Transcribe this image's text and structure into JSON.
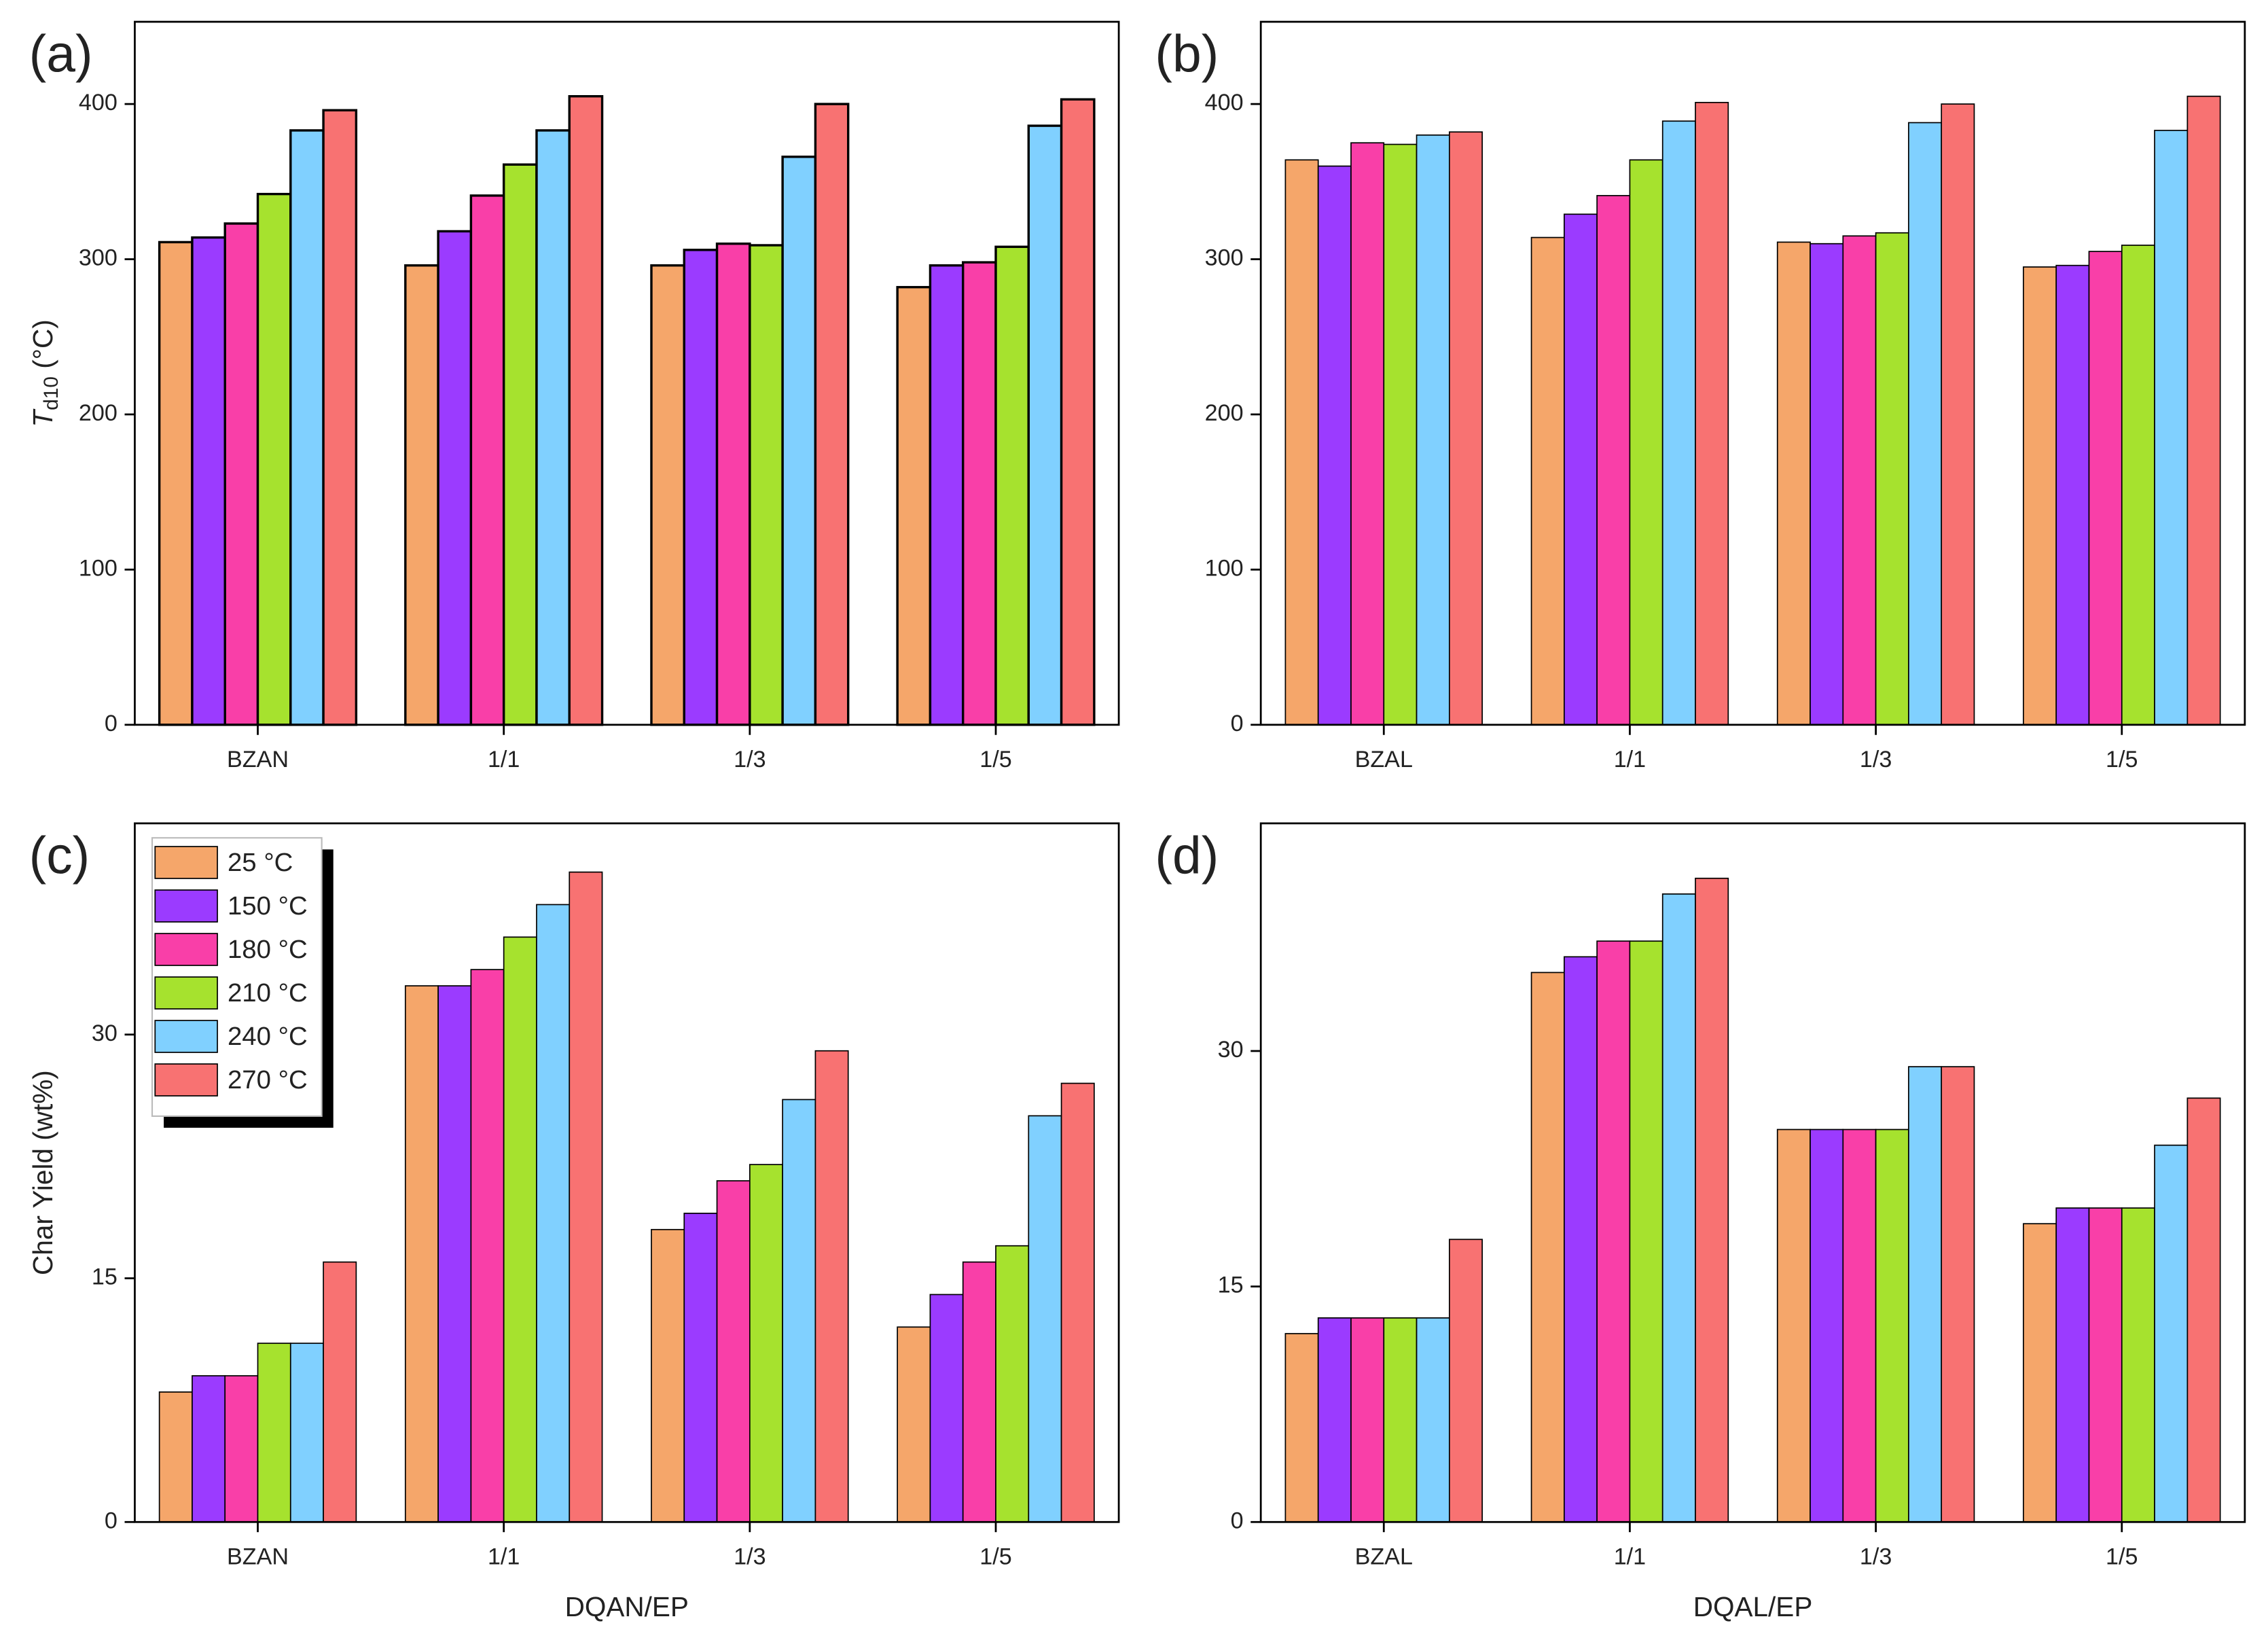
{
  "chart_data": [
    {
      "type": "bar",
      "panel": "(a)",
      "ylabel": "T",
      "ylabel_sub": "d10",
      "ylabel_unit": " (°C)",
      "categories": [
        "BZAN",
        "1/1",
        "1/3",
        "1/5"
      ],
      "ylim": [
        0,
        453
      ],
      "yticks": [
        0,
        100,
        200,
        300,
        400
      ],
      "edge_width": 1.6,
      "series": [
        {
          "color": "#f5a66a",
          "values": [
            311,
            296,
            296,
            282
          ]
        },
        {
          "color": "#9b3bff",
          "values": [
            314,
            318,
            306,
            296
          ]
        },
        {
          "color": "#f93fa8",
          "values": [
            323,
            341,
            310,
            298
          ]
        },
        {
          "color": "#a6e22e",
          "values": [
            342,
            361,
            309,
            308
          ]
        },
        {
          "color": "#80d0ff",
          "values": [
            383,
            383,
            366,
            386
          ]
        },
        {
          "color": "#f87272",
          "values": [
            396,
            405,
            400,
            403
          ]
        }
      ]
    },
    {
      "type": "bar",
      "panel": "(b)",
      "categories": [
        "BZAL",
        "1/1",
        "1/3",
        "1/5"
      ],
      "ylim": [
        0,
        453
      ],
      "yticks": [
        0,
        100,
        200,
        300,
        400
      ],
      "edge_width": 0.8,
      "series": [
        {
          "color": "#f5a66a",
          "values": [
            364,
            314,
            311,
            295
          ]
        },
        {
          "color": "#9b3bff",
          "values": [
            360,
            329,
            310,
            296
          ]
        },
        {
          "color": "#f93fa8",
          "values": [
            375,
            341,
            315,
            305
          ]
        },
        {
          "color": "#a6e22e",
          "values": [
            374,
            364,
            317,
            309
          ]
        },
        {
          "color": "#80d0ff",
          "values": [
            380,
            389,
            388,
            383
          ]
        },
        {
          "color": "#f87272",
          "values": [
            382,
            401,
            400,
            405
          ]
        }
      ]
    },
    {
      "type": "bar",
      "panel": "(c)",
      "ylabel": "Char Yield (wt%)",
      "xlabel": "DQAN/EP",
      "legend": "top-left",
      "categories": [
        "BZAN",
        "1/1",
        "1/3",
        "1/5"
      ],
      "ylim": [
        0,
        43
      ],
      "yticks": [
        0,
        15,
        30
      ],
      "edge_width": 0.8,
      "series": [
        {
          "name": "25 °C",
          "color": "#f5a66a",
          "values": [
            8,
            33,
            18,
            12
          ]
        },
        {
          "name": "150 °C",
          "color": "#9b3bff",
          "values": [
            9,
            33,
            19,
            14
          ]
        },
        {
          "name": "180 °C",
          "color": "#f93fa8",
          "values": [
            9,
            34,
            21,
            16
          ]
        },
        {
          "name": "210 °C",
          "color": "#a6e22e",
          "values": [
            11,
            36,
            22,
            17
          ]
        },
        {
          "name": "240 °C",
          "color": "#80d0ff",
          "values": [
            11,
            38,
            26,
            25
          ]
        },
        {
          "name": "270 °C",
          "color": "#f87272",
          "values": [
            16,
            40,
            29,
            27
          ]
        }
      ]
    },
    {
      "type": "bar",
      "panel": "(d)",
      "xlabel": "DQAL/EP",
      "categories": [
        "BZAL",
        "1/1",
        "1/3",
        "1/5"
      ],
      "ylim": [
        0,
        44.5
      ],
      "yticks": [
        0,
        15,
        30
      ],
      "edge_width": 0.8,
      "series": [
        {
          "color": "#f5a66a",
          "values": [
            12,
            35,
            25,
            19
          ]
        },
        {
          "color": "#9b3bff",
          "values": [
            13,
            36,
            25,
            20
          ]
        },
        {
          "color": "#f93fa8",
          "values": [
            13,
            37,
            25,
            20
          ]
        },
        {
          "color": "#a6e22e",
          "values": [
            13,
            37,
            25,
            20
          ]
        },
        {
          "color": "#80d0ff",
          "values": [
            13,
            40,
            29,
            24
          ]
        },
        {
          "color": "#f87272",
          "values": [
            18,
            41,
            29,
            27
          ]
        }
      ]
    }
  ]
}
